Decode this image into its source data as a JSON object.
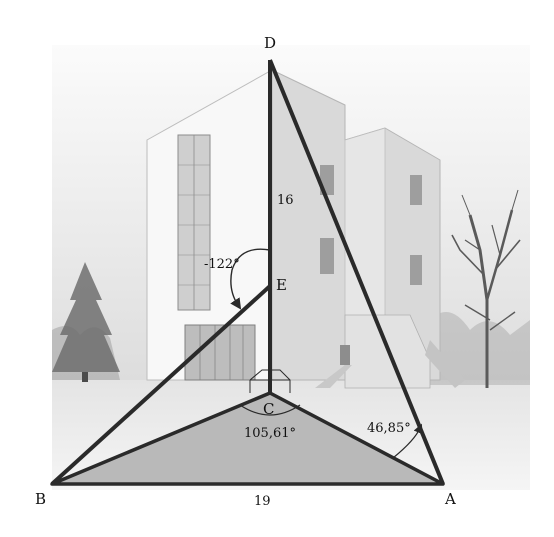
{
  "points": {
    "A": "A",
    "B": "B",
    "C": "C",
    "D": "D",
    "E": "E"
  },
  "measures": {
    "dc": "16",
    "ba": "19",
    "angle_e": "-122°",
    "angle_c": "105,61°",
    "angle_a": "46,85°"
  },
  "colors": {
    "edge": "#2a2a2a",
    "triangle_fill": "#b9b9b9",
    "sky": "#f2f2f2",
    "building": "#f7f7f7"
  },
  "icons": {
    "building": "building-drawing",
    "tree": "tree-drawing"
  }
}
